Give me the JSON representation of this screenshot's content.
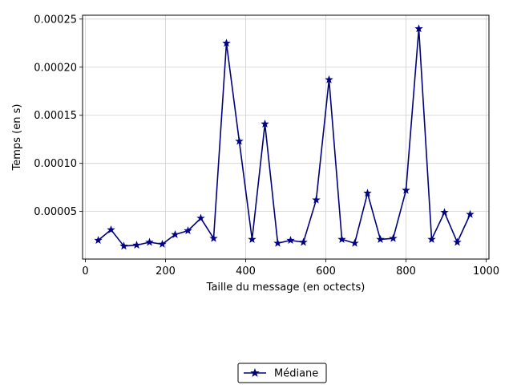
{
  "chart_data": {
    "type": "line",
    "title": "",
    "xlabel": "Taille du message (en octects)",
    "ylabel": "Temps (en s)",
    "xlim": [
      -7,
      1007
    ],
    "ylim": [
      5e-07,
      0.000254
    ],
    "xticks": [
      0,
      200,
      400,
      600,
      800,
      1000
    ],
    "xtick_labels": [
      "0",
      "200",
      "400",
      "600",
      "800",
      "1000"
    ],
    "yticks": [
      5e-05,
      0.0001,
      0.00015,
      0.0002,
      0.00025
    ],
    "ytick_labels": [
      "0.00005",
      "0.00010",
      "0.00015",
      "0.00020",
      "0.00025"
    ],
    "grid": true,
    "legend_position": "bottom-center",
    "series": [
      {
        "name": "Médiane",
        "color": "#000080",
        "marker": "star",
        "x": [
          32,
          64,
          96,
          128,
          160,
          192,
          224,
          256,
          288,
          320,
          352,
          384,
          416,
          448,
          480,
          512,
          544,
          576,
          608,
          640,
          672,
          704,
          736,
          768,
          800,
          832,
          864,
          896,
          928,
          960
        ],
        "y": [
          2e-05,
          3.1e-05,
          1.4e-05,
          1.5e-05,
          1.8e-05,
          1.6e-05,
          2.6e-05,
          3e-05,
          4.3e-05,
          2.2e-05,
          0.000225,
          0.000123,
          2.1e-05,
          0.000141,
          1.7e-05,
          2e-05,
          1.8e-05,
          6.2e-05,
          0.000187,
          2.1e-05,
          1.7e-05,
          6.9e-05,
          2.1e-05,
          2.2e-05,
          7.2e-05,
          0.00024,
          2.1e-05,
          4.9e-05,
          1.8e-05,
          4.7e-05
        ]
      }
    ]
  }
}
